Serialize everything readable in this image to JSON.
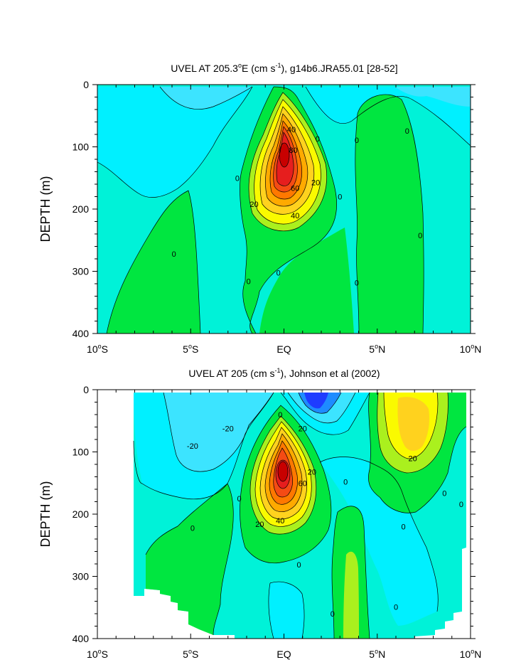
{
  "chart_data": [
    {
      "type": "contour",
      "title_main": "UVEL AT 205.3",
      "title_deg": "o",
      "title_rest": "E (cm s",
      "title_exp": "-1",
      "title_tail": "), g14b6.JRA55.01 [28-52]",
      "ylabel": "DEPTH (m)",
      "yticks": [
        "0",
        "100",
        "200",
        "300",
        "400"
      ],
      "ylim": [
        0,
        400
      ],
      "xlim": [
        -10,
        10
      ],
      "xticks": [
        {
          "value": -10,
          "pre": "10",
          "sup": "o",
          "post": "S"
        },
        {
          "value": -5,
          "pre": "5",
          "sup": "o",
          "post": "S"
        },
        {
          "value": 0,
          "pre": "EQ",
          "sup": "",
          "post": ""
        },
        {
          "value": 5,
          "pre": "5",
          "sup": "o",
          "post": "N"
        },
        {
          "value": 10,
          "pre": "10",
          "sup": "o",
          "post": "N"
        }
      ],
      "contour_labels": [
        {
          "text": "40",
          "x": 0.4,
          "depth": 72
        },
        {
          "text": "80",
          "x": 0.5,
          "depth": 105
        },
        {
          "text": "60",
          "x": 0.6,
          "depth": 166
        },
        {
          "text": "20",
          "x": 1.7,
          "depth": 157
        },
        {
          "text": "20",
          "x": -1.6,
          "depth": 192
        },
        {
          "text": "40",
          "x": 0.6,
          "depth": 210
        },
        {
          "text": "0",
          "x": 1.8,
          "depth": 87
        },
        {
          "text": "0",
          "x": -2.5,
          "depth": 150
        },
        {
          "text": "0",
          "x": 3.0,
          "depth": 180
        },
        {
          "text": "0",
          "x": 3.9,
          "depth": 89
        },
        {
          "text": "0",
          "x": 6.6,
          "depth": 74
        },
        {
          "text": "0",
          "x": 7.3,
          "depth": 242
        },
        {
          "text": "0",
          "x": -5.9,
          "depth": 272
        },
        {
          "text": "0",
          "x": -1.9,
          "depth": 316
        },
        {
          "text": "0",
          "x": -0.3,
          "depth": 302
        },
        {
          "text": "0",
          "x": 3.9,
          "depth": 318
        }
      ]
    },
    {
      "type": "contour",
      "title_main": "UVEL AT 205 (cm s",
      "title_exp": "-1",
      "title_tail": "), Johnson et al (2002)",
      "ylabel": "DEPTH (m)",
      "yticks": [
        "0",
        "100",
        "200",
        "300",
        "400"
      ],
      "ylim": [
        0,
        400
      ],
      "xlim": [
        -10,
        10
      ],
      "xticks": [
        {
          "value": -10,
          "pre": "10",
          "sup": "o",
          "post": "S"
        },
        {
          "value": -5,
          "pre": "5",
          "sup": "o",
          "post": "S"
        },
        {
          "value": 0,
          "pre": "EQ",
          "sup": "",
          "post": ""
        },
        {
          "value": 5,
          "pre": "5",
          "sup": "o",
          "post": "N"
        },
        {
          "value": 10,
          "pre": "10",
          "sup": "o",
          "post": "N"
        }
      ],
      "contour_labels": [
        {
          "text": "-20",
          "x": -4.9,
          "depth": 90
        },
        {
          "text": "-20",
          "x": -3.0,
          "depth": 62
        },
        {
          "text": "0",
          "x": -0.2,
          "depth": 40
        },
        {
          "text": "20",
          "x": 1.0,
          "depth": 62
        },
        {
          "text": "60",
          "x": 1.0,
          "depth": 150
        },
        {
          "text": "20",
          "x": 1.5,
          "depth": 132
        },
        {
          "text": "20",
          "x": -1.3,
          "depth": 216
        },
        {
          "text": "40",
          "x": -0.2,
          "depth": 210
        },
        {
          "text": "0",
          "x": 3.3,
          "depth": 148
        },
        {
          "text": "20",
          "x": 6.9,
          "depth": 110
        },
        {
          "text": "0",
          "x": -2.4,
          "depth": 175
        },
        {
          "text": "0",
          "x": -4.9,
          "depth": 222
        },
        {
          "text": "0",
          "x": 0.8,
          "depth": 281
        },
        {
          "text": "0",
          "x": 6.4,
          "depth": 220
        },
        {
          "text": "0",
          "x": 8.6,
          "depth": 166
        },
        {
          "text": "0",
          "x": 9.5,
          "depth": 184
        },
        {
          "text": "0",
          "x": 2.6,
          "depth": 360
        },
        {
          "text": "0",
          "x": 6.0,
          "depth": 349
        }
      ]
    }
  ],
  "colors": {
    "cyan_light": "#00f2d8",
    "cyan": "#00f0ff",
    "sky": "#3ce4ff",
    "blue_mid": "#1e8cff",
    "blue_dark": "#1e3cff",
    "green": "#00e640",
    "green_light": "#55f01e",
    "yellow_green": "#aaf01e",
    "yellow": "#fafa00",
    "gold": "#ffd21e",
    "orange_light": "#ffaa00",
    "orange": "#ff7800",
    "red_orange": "#f54b14",
    "red": "#e61e1e",
    "dark_red": "#c80000",
    "white": "#ffffff"
  }
}
